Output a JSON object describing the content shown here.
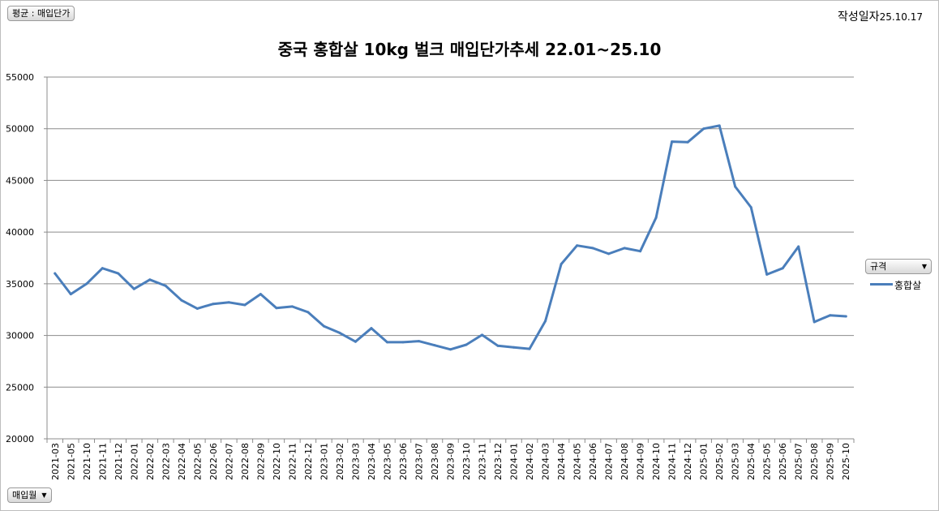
{
  "filter_button": {
    "label": "평균 : 매입단가"
  },
  "xfield_button": {
    "label": "매입월"
  },
  "legend_button": {
    "label": "규격"
  },
  "date": {
    "label": "작성일자",
    "value": "25.10.17"
  },
  "accent_color": "#4a7ebb",
  "chart_data": {
    "type": "line",
    "title": "중국 홍합살 10kg 벌크 매입단가추세 22.01~25.10",
    "xlabel": "",
    "ylabel": "",
    "ylim": [
      20000,
      55000
    ],
    "yticks": [
      "20000",
      "25000",
      "30000",
      "35000",
      "40000",
      "45000",
      "50000",
      "55000"
    ],
    "grid": true,
    "legend": "right",
    "categories": [
      "2021-03",
      "2021-05",
      "2021-10",
      "2021-11",
      "2021-12",
      "2022-01",
      "2022-02",
      "2022-03",
      "2022-04",
      "2022-05",
      "2022-06",
      "2022-07",
      "2022-08",
      "2022-09",
      "2022-10",
      "2022-11",
      "2022-12",
      "2023-01",
      "2023-02",
      "2023-03",
      "2023-04",
      "2023-05",
      "2023-06",
      "2023-07",
      "2023-08",
      "2023-09",
      "2023-10",
      "2023-11",
      "2023-12",
      "2024-01",
      "2024-02",
      "2024-03",
      "2024-04",
      "2024-05",
      "2024-06",
      "2024-07",
      "2024-08",
      "2024-09",
      "2024-10",
      "2024-11",
      "2024-12",
      "2025-01",
      "2025-02",
      "2025-03",
      "2025-04",
      "2025-05",
      "2025-06",
      "2025-07",
      "2025-08",
      "2025-09",
      "2025-10"
    ],
    "series": [
      {
        "name": "홍합살",
        "values": [
          36000,
          34000,
          35000,
          36500,
          36000,
          34500,
          35400,
          34800,
          33400,
          32600,
          33050,
          33200,
          32950,
          34000,
          32650,
          32800,
          32250,
          30900,
          30250,
          29400,
          30700,
          29350,
          29350,
          29450,
          29050,
          28650,
          29100,
          30050,
          29000,
          28850,
          28700,
          31400,
          36900,
          38700,
          38450,
          37900,
          38450,
          38150,
          41400,
          48750,
          48700,
          50000,
          50300,
          44400,
          42400,
          35900,
          36500,
          38600,
          31300,
          31950,
          31850
        ]
      }
    ]
  }
}
